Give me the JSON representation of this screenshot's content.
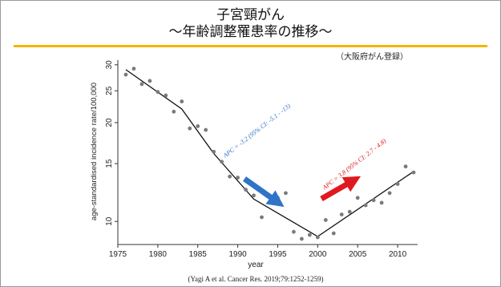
{
  "slide": {
    "title_line1": "子宮頸がん",
    "title_line2": "〜年齢調整罹患率の推移〜",
    "citation": "(Yagi A et al. Cancer Res. 2019;79:1252-1259)",
    "accent_color": "#f2b705"
  },
  "chart_data": {
    "type": "scatter",
    "source_label": "（大阪府がん登録）",
    "xlabel": "year",
    "ylabel": "age-standardised incidence rate/100,000",
    "y_scale": "log",
    "xlim": [
      1975,
      2012.5
    ],
    "ylim": [
      8.7,
      31
    ],
    "x_ticks": [
      1975,
      1980,
      1985,
      1990,
      1995,
      2000,
      2005,
      2010
    ],
    "y_ticks": [
      10,
      15,
      20,
      25,
      30
    ],
    "grid": false,
    "points": [
      {
        "x": 1976,
        "y": 28.0
      },
      {
        "x": 1977,
        "y": 29.2
      },
      {
        "x": 1978,
        "y": 26.2
      },
      {
        "x": 1979,
        "y": 26.8
      },
      {
        "x": 1980,
        "y": 24.8
      },
      {
        "x": 1981,
        "y": 24.2
      },
      {
        "x": 1982,
        "y": 21.6
      },
      {
        "x": 1983,
        "y": 23.2
      },
      {
        "x": 1984,
        "y": 19.2
      },
      {
        "x": 1985,
        "y": 19.5
      },
      {
        "x": 1986,
        "y": 19.0
      },
      {
        "x": 1987,
        "y": 16.3
      },
      {
        "x": 1988,
        "y": 15.2
      },
      {
        "x": 1989,
        "y": 13.7
      },
      {
        "x": 1990,
        "y": 13.6
      },
      {
        "x": 1991,
        "y": 12.5
      },
      {
        "x": 1992,
        "y": 12.0
      },
      {
        "x": 1993,
        "y": 10.3
      },
      {
        "x": 1994,
        "y": 11.4
      },
      {
        "x": 1995,
        "y": 11.8
      },
      {
        "x": 1996,
        "y": 12.2
      },
      {
        "x": 1997,
        "y": 9.3
      },
      {
        "x": 1998,
        "y": 8.85
      },
      {
        "x": 1999,
        "y": 9.1
      },
      {
        "x": 2000,
        "y": 8.95
      },
      {
        "x": 2001,
        "y": 10.1
      },
      {
        "x": 2002,
        "y": 9.2
      },
      {
        "x": 2003,
        "y": 10.5
      },
      {
        "x": 2004,
        "y": 10.7
      },
      {
        "x": 2005,
        "y": 11.8
      },
      {
        "x": 2006,
        "y": 11.2
      },
      {
        "x": 2007,
        "y": 11.6
      },
      {
        "x": 2008,
        "y": 11.4
      },
      {
        "x": 2009,
        "y": 12.2
      },
      {
        "x": 2010,
        "y": 13.0
      },
      {
        "x": 2011,
        "y": 14.7
      },
      {
        "x": 2012,
        "y": 14.1
      }
    ],
    "trend_line": [
      {
        "x": 1976,
        "y": 29.0
      },
      {
        "x": 1983,
        "y": 22.0
      },
      {
        "x": 1987,
        "y": 16.1
      },
      {
        "x": 1992,
        "y": 11.7
      },
      {
        "x": 2000,
        "y": 9.0
      },
      {
        "x": 2012,
        "y": 14.2
      }
    ],
    "annotations": [
      {
        "text": "APC = -3.2 (95% CI: -5.1 - -13)",
        "color": "#2f74c8",
        "arrow": "down"
      },
      {
        "text": "APC = 3.8 (95% CI: 2.7 - 4.8)",
        "color": "#e0191e",
        "arrow": "up"
      }
    ]
  }
}
